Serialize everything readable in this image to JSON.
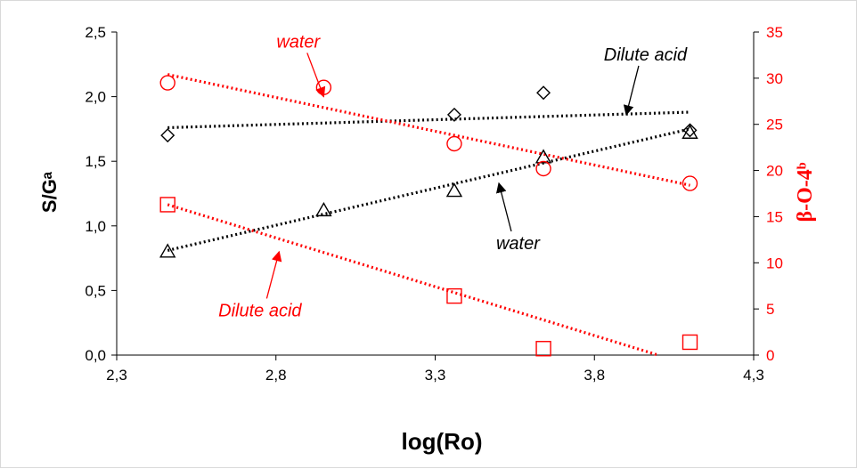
{
  "chart_data": {
    "type": "scatter",
    "xlabel": "log(Ro)",
    "ylabel": "S/Gᵃ",
    "y2label": "β-O-4ᵇ",
    "xlim": [
      2.3,
      4.3
    ],
    "ylim": [
      0,
      2.5
    ],
    "y2lim": [
      0,
      35
    ],
    "x_ticks": [
      "2,3",
      "2,8",
      "3,3",
      "3,8",
      "4,3"
    ],
    "y_ticks": [
      "0,0",
      "0,5",
      "1,0",
      "1,5",
      "2,0",
      "2,5"
    ],
    "y2_ticks": [
      "0",
      "5",
      "10",
      "15",
      "20",
      "25",
      "30",
      "35"
    ],
    "colors": {
      "black_series": "#000000",
      "red_series": "#ff0000"
    },
    "series": [
      {
        "axis": "left",
        "marker": "diamond",
        "color": "#000000",
        "points": [
          [
            2.46,
            1.7
          ],
          [
            3.36,
            1.86
          ],
          [
            3.64,
            2.03
          ],
          [
            4.1,
            1.74
          ]
        ],
        "trendline": [
          [
            2.46,
            1.76
          ],
          [
            4.1,
            1.88
          ]
        ]
      },
      {
        "axis": "left",
        "marker": "triangle",
        "color": "#000000",
        "points": [
          [
            2.46,
            0.8
          ],
          [
            2.95,
            1.12
          ],
          [
            3.36,
            1.27
          ],
          [
            3.64,
            1.53
          ],
          [
            4.1,
            1.72
          ]
        ],
        "trendline": [
          [
            2.46,
            0.81
          ],
          [
            4.1,
            1.75
          ]
        ]
      },
      {
        "axis": "right",
        "marker": "circle",
        "color": "#ff0000",
        "points": [
          [
            2.46,
            29.5
          ],
          [
            2.95,
            29.0
          ],
          [
            3.36,
            22.9
          ],
          [
            3.64,
            20.2
          ],
          [
            4.1,
            18.6
          ]
        ],
        "trendline": [
          [
            2.46,
            30.4
          ],
          [
            4.1,
            18.4
          ]
        ]
      },
      {
        "axis": "right",
        "marker": "square",
        "color": "#ff0000",
        "points": [
          [
            2.46,
            16.3
          ],
          [
            3.36,
            6.4
          ],
          [
            3.64,
            0.7
          ],
          [
            4.1,
            1.4
          ]
        ],
        "trendline": [
          [
            2.46,
            16.3
          ],
          [
            4.0,
            0.0
          ]
        ]
      }
    ],
    "annotations": [
      {
        "text": "water",
        "color": "#ff0000",
        "at": [
          2.87,
          2.38
        ],
        "axis": "left",
        "arrow_to": [
          2.95,
          2.0
        ]
      },
      {
        "text": "Dilute acid",
        "color": "#000000",
        "at": [
          3.96,
          2.28
        ],
        "axis": "left",
        "arrow_to": [
          3.9,
          1.86
        ]
      },
      {
        "text": "water",
        "color": "#000000",
        "at": [
          3.56,
          0.82
        ],
        "axis": "left",
        "arrow_to": [
          3.5,
          1.33
        ]
      },
      {
        "text": "Dilute acid",
        "color": "#ff0000",
        "at": [
          2.75,
          0.3
        ],
        "axis": "left",
        "arrow_to": [
          2.81,
          0.8
        ]
      }
    ],
    "grid": false,
    "legend": "none"
  }
}
